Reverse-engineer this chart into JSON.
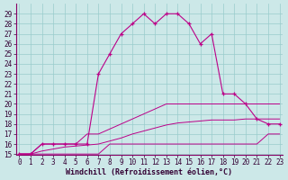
{
  "xlabel": "Windchill (Refroidissement éolien,°C)",
  "background_color": "#cce8e8",
  "grid_color": "#99cccc",
  "line_color": "#bb0088",
  "hours": [
    0,
    1,
    2,
    3,
    4,
    5,
    6,
    7,
    8,
    9,
    10,
    11,
    12,
    13,
    14,
    15,
    16,
    17,
    18,
    19,
    20,
    21,
    22,
    23
  ],
  "temp": [
    15,
    15,
    16,
    16,
    16,
    16,
    16,
    23,
    25,
    27,
    28,
    29,
    28,
    29,
    29,
    28,
    26,
    27,
    21,
    21,
    20,
    18.5,
    18,
    18
  ],
  "tmin": [
    15,
    15,
    15,
    15,
    15,
    15,
    15,
    15,
    16,
    16,
    16,
    16,
    16,
    16,
    16,
    16,
    16,
    16,
    16,
    16,
    16,
    16,
    17,
    17
  ],
  "tmax": [
    15,
    15,
    16,
    16,
    16,
    16,
    17,
    17,
    17.5,
    18,
    18.5,
    19,
    19.5,
    20,
    20,
    20,
    20,
    20,
    20,
    20,
    20,
    20,
    20,
    20
  ],
  "tavg": [
    15,
    15,
    15.3,
    15.5,
    15.7,
    15.8,
    15.9,
    16.0,
    16.3,
    16.6,
    17.0,
    17.3,
    17.6,
    17.9,
    18.1,
    18.2,
    18.3,
    18.4,
    18.4,
    18.4,
    18.5,
    18.5,
    18.5,
    18.5
  ],
  "ylim_min": 15,
  "ylim_max": 30,
  "yticks": [
    15,
    16,
    17,
    18,
    19,
    20,
    21,
    22,
    23,
    24,
    25,
    26,
    27,
    28,
    29
  ],
  "xticks": [
    0,
    1,
    2,
    3,
    4,
    5,
    6,
    7,
    8,
    9,
    10,
    11,
    12,
    13,
    14,
    15,
    16,
    17,
    18,
    19,
    20,
    21,
    22,
    23
  ],
  "tick_fontsize": 5.5,
  "xlabel_fontsize": 6.0
}
